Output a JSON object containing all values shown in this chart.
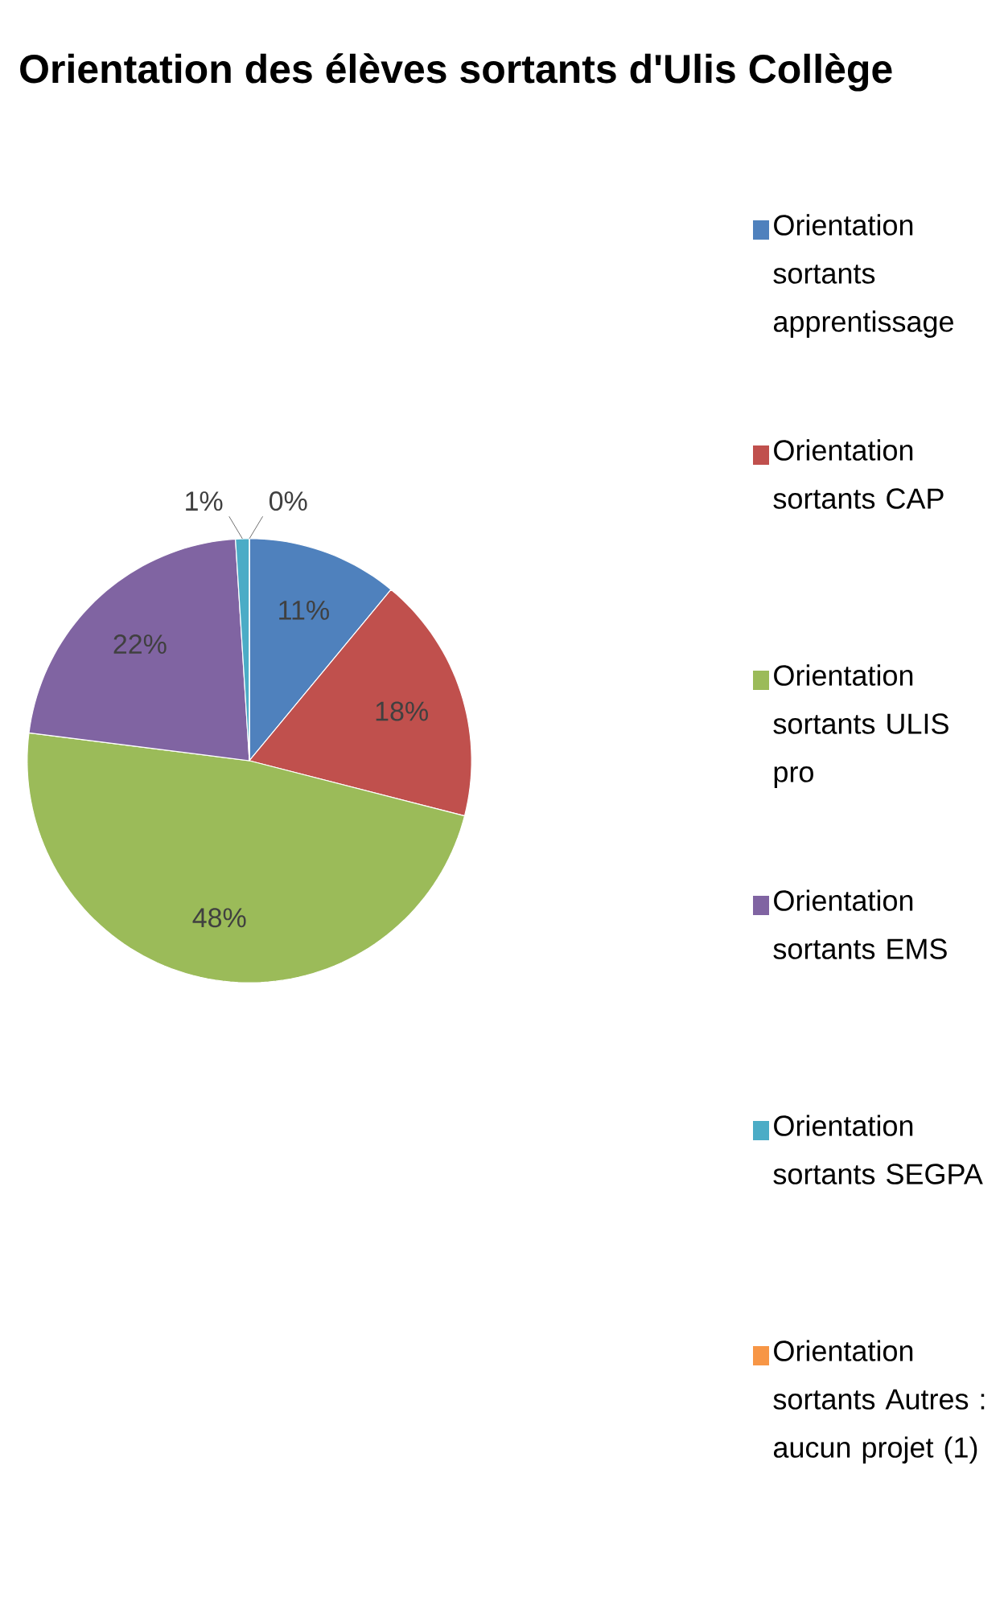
{
  "chart_data": {
    "type": "pie",
    "title": "Orientation des élèves sortants d'Ulis Collège",
    "categories": [
      "Orientation sortants apprentissage",
      "Orientation sortants CAP",
      "Orientation sortants ULIS pro",
      "Orientation sortants EMS",
      "Orientation sortants SEGPA",
      "Orientation sortants Autres : aucun projet (1)"
    ],
    "values": [
      11,
      18,
      48,
      22,
      1,
      0
    ],
    "value_labels": [
      "11%",
      "18%",
      "48%",
      "22%",
      "1%",
      "0%"
    ],
    "colors": [
      "#4f81bd",
      "#c0504d",
      "#9bbb59",
      "#8064a2",
      "#4bacc6",
      "#f79646"
    ],
    "legend": "right"
  }
}
